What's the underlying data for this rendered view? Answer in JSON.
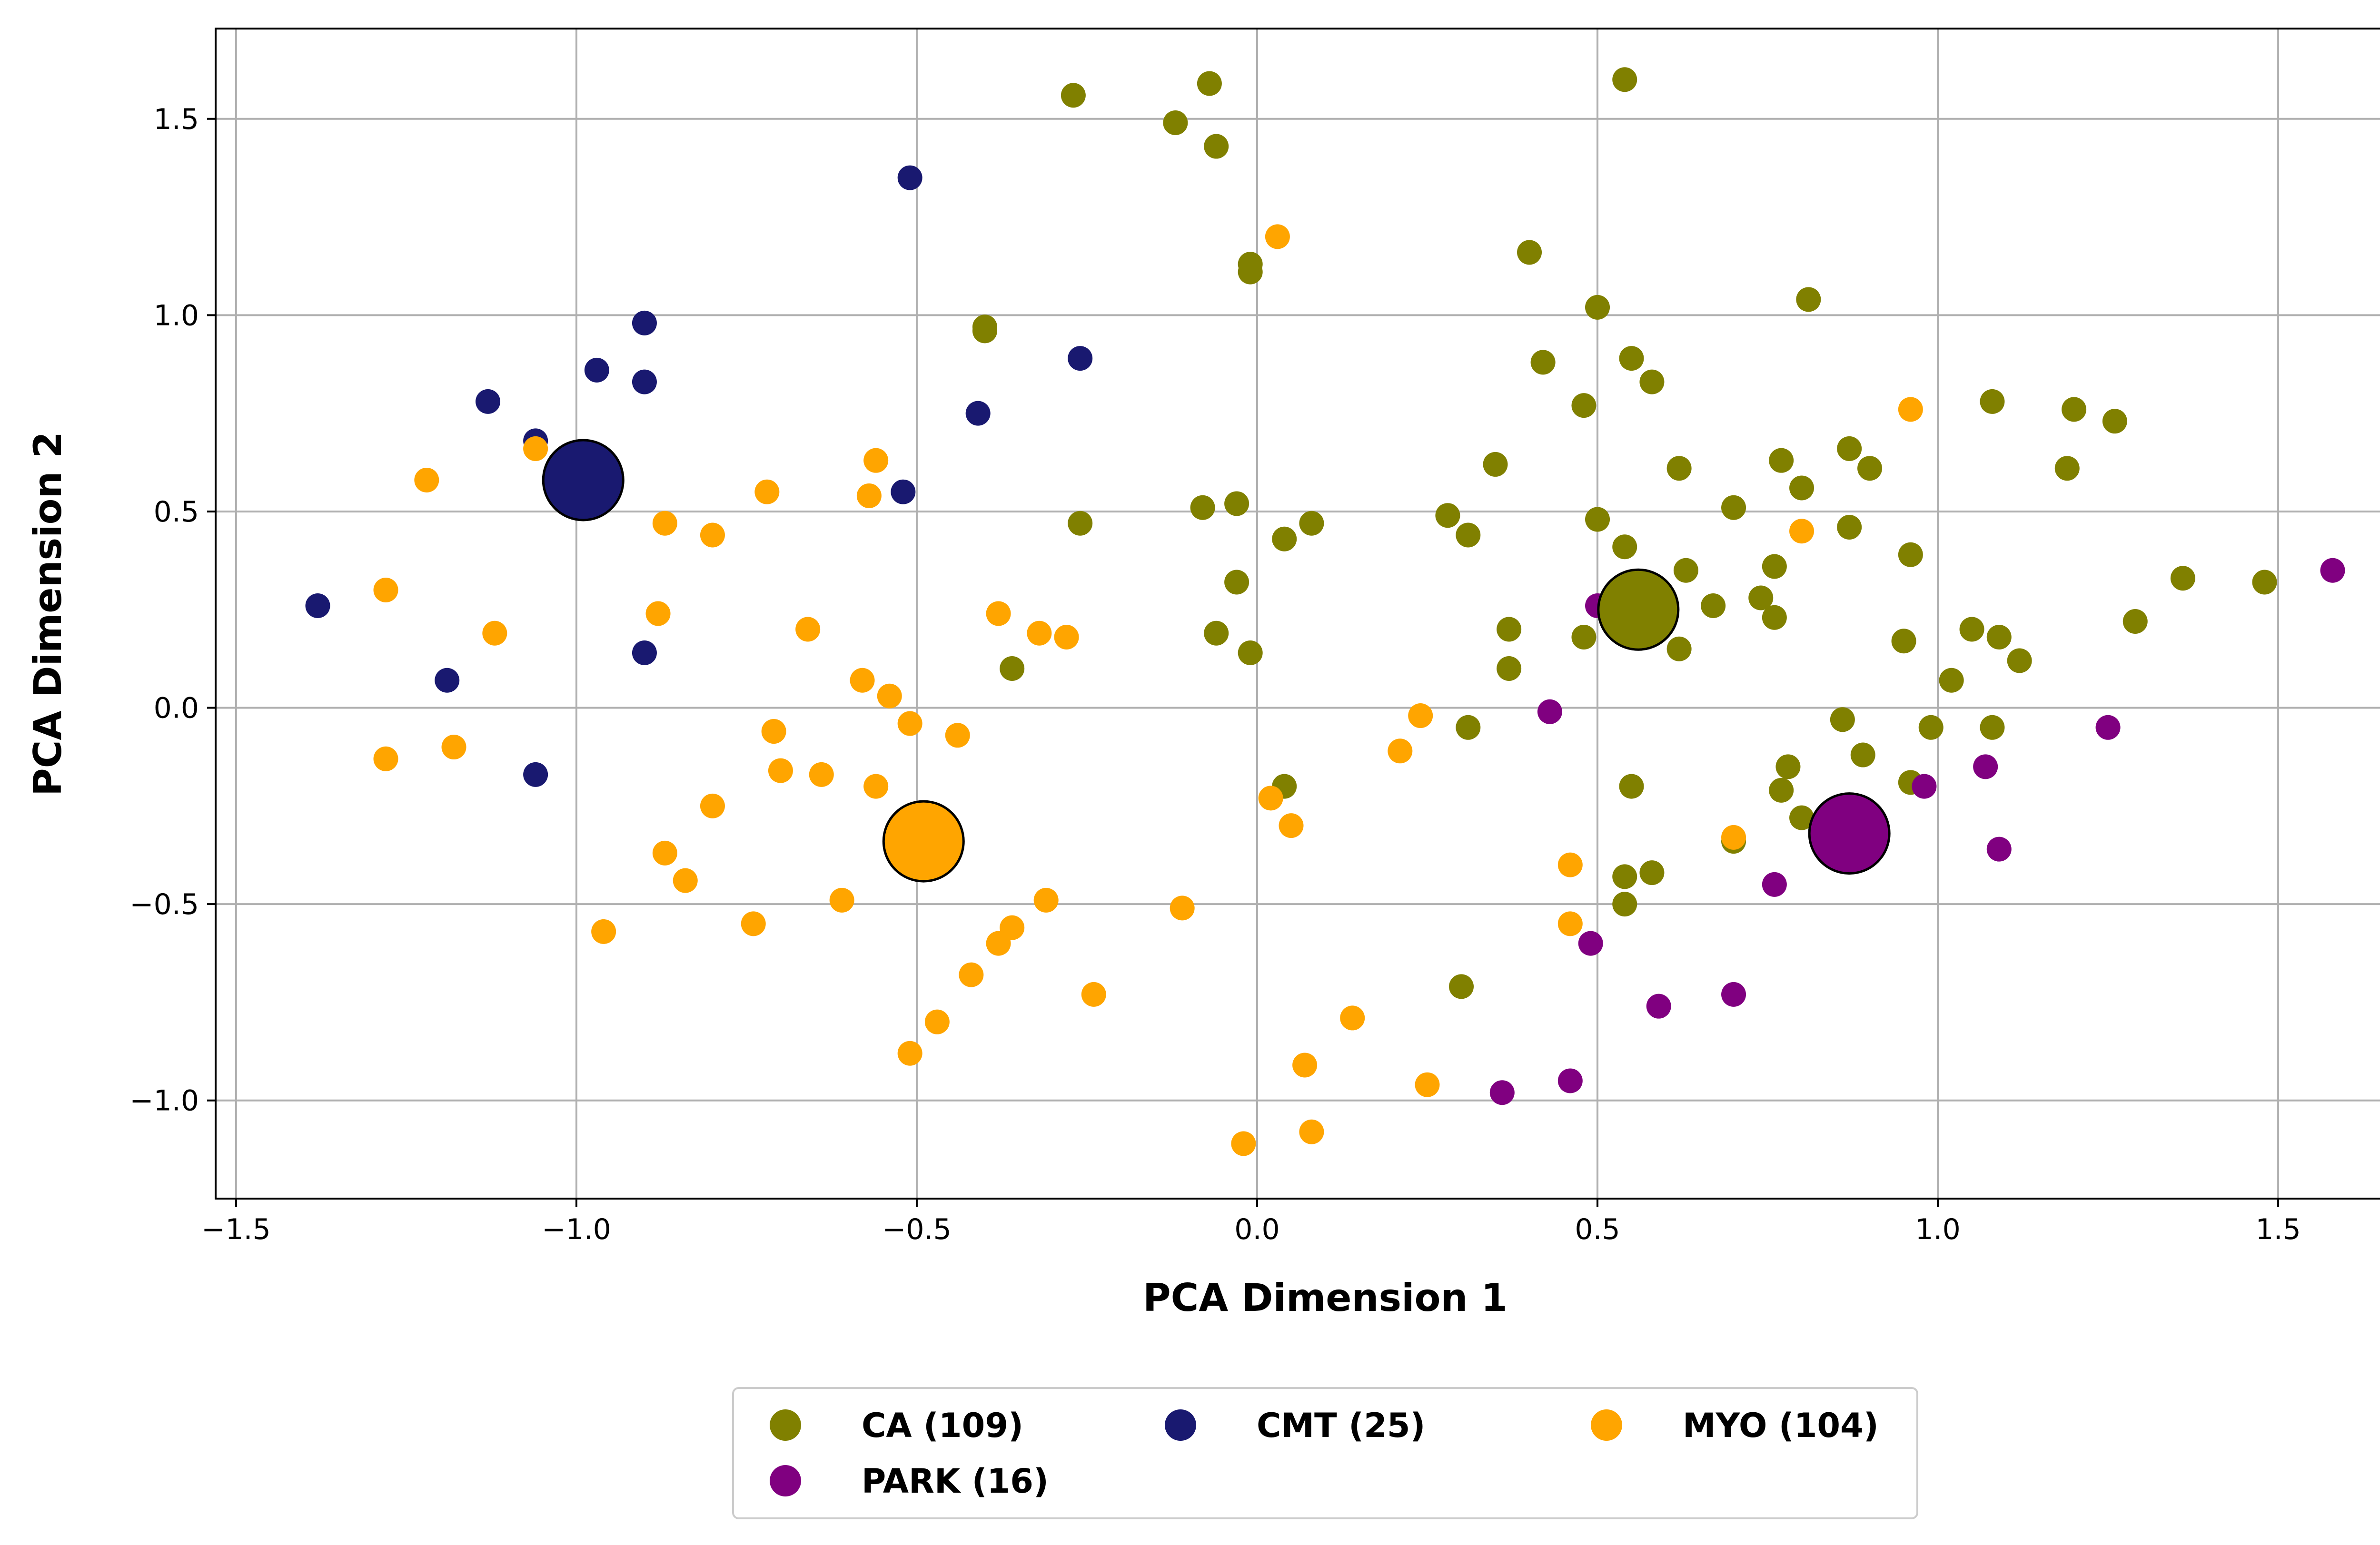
{
  "chart_data": {
    "type": "scatter",
    "xlabel": "PCA Dimension 1",
    "ylabel": "PCA Dimension 2",
    "xlim": [
      -1.53,
      1.73
    ],
    "ylim": [
      -1.25,
      1.73
    ],
    "xticks": [
      -1.5,
      -1.0,
      -0.5,
      0.0,
      0.5,
      1.0,
      1.5
    ],
    "xtick_labels": [
      "−1.5",
      "−1.0",
      "−0.5",
      "0.0",
      "0.5",
      "1.0",
      "1.5"
    ],
    "yticks": [
      -1.0,
      -0.5,
      0.0,
      0.5,
      1.0,
      1.5
    ],
    "ytick_labels": [
      "−1.0",
      "−0.5",
      "0.0",
      "0.5",
      "1.0",
      "1.5"
    ],
    "grid": true,
    "legend_position": "below",
    "series": [
      {
        "name": "CA (109)",
        "color": "#808000",
        "centroid": [
          0.56,
          0.25
        ],
        "points": [
          [
            -0.27,
            1.56
          ],
          [
            -0.07,
            1.59
          ],
          [
            -0.12,
            1.49
          ],
          [
            -0.06,
            1.43
          ],
          [
            0.54,
            1.6
          ],
          [
            -0.01,
            1.13
          ],
          [
            -0.01,
            1.11
          ],
          [
            0.4,
            1.16
          ],
          [
            0.5,
            1.02
          ],
          [
            0.81,
            1.04
          ],
          [
            0.42,
            0.88
          ],
          [
            0.55,
            0.89
          ],
          [
            0.58,
            0.83
          ],
          [
            0.48,
            0.77
          ],
          [
            1.08,
            0.78
          ],
          [
            1.2,
            0.76
          ],
          [
            1.26,
            0.73
          ],
          [
            0.87,
            0.66
          ],
          [
            0.9,
            0.61
          ],
          [
            0.77,
            0.63
          ],
          [
            0.8,
            0.56
          ],
          [
            0.62,
            0.61
          ],
          [
            1.19,
            0.61
          ],
          [
            -0.4,
            0.97
          ],
          [
            -0.4,
            0.96
          ],
          [
            0.35,
            0.62
          ],
          [
            -0.08,
            0.51
          ],
          [
            -0.03,
            0.52
          ],
          [
            0.08,
            0.47
          ],
          [
            0.04,
            0.43
          ],
          [
            -0.26,
            0.47
          ],
          [
            0.28,
            0.49
          ],
          [
            0.31,
            0.44
          ],
          [
            0.5,
            0.48
          ],
          [
            0.54,
            0.41
          ],
          [
            0.7,
            0.51
          ],
          [
            0.76,
            0.36
          ],
          [
            0.87,
            0.46
          ],
          [
            0.96,
            0.39
          ],
          [
            0.63,
            0.35
          ],
          [
            0.67,
            0.26
          ],
          [
            0.74,
            0.28
          ],
          [
            0.76,
            0.23
          ],
          [
            1.36,
            0.33
          ],
          [
            1.48,
            0.32
          ],
          [
            -0.03,
            0.32
          ],
          [
            -0.06,
            0.19
          ],
          [
            -0.01,
            0.14
          ],
          [
            0.37,
            0.2
          ],
          [
            0.37,
            0.1
          ],
          [
            0.48,
            0.18
          ],
          [
            0.62,
            0.15
          ],
          [
            1.05,
            0.2
          ],
          [
            1.09,
            0.18
          ],
          [
            1.12,
            0.12
          ],
          [
            0.95,
            0.17
          ],
          [
            1.29,
            0.22
          ],
          [
            1.02,
            0.07
          ],
          [
            -0.36,
            0.1
          ],
          [
            0.31,
            -0.05
          ],
          [
            0.86,
            -0.03
          ],
          [
            0.89,
            -0.12
          ],
          [
            0.99,
            -0.05
          ],
          [
            1.08,
            -0.05
          ],
          [
            0.96,
            -0.19
          ],
          [
            0.78,
            -0.15
          ],
          [
            0.77,
            -0.21
          ],
          [
            0.8,
            -0.28
          ],
          [
            0.55,
            -0.2
          ],
          [
            0.04,
            -0.2
          ],
          [
            0.54,
            -0.43
          ],
          [
            0.58,
            -0.42
          ],
          [
            0.54,
            -0.5
          ],
          [
            0.7,
            -0.34
          ],
          [
            0.3,
            -0.71
          ]
        ]
      },
      {
        "name": "CMT (25)",
        "color": "#191970",
        "centroid": [
          -0.99,
          0.58
        ],
        "points": [
          [
            -0.51,
            1.35
          ],
          [
            -0.9,
            0.98
          ],
          [
            -0.97,
            0.86
          ],
          [
            -0.9,
            0.83
          ],
          [
            -1.13,
            0.78
          ],
          [
            -0.26,
            0.89
          ],
          [
            -0.41,
            0.75
          ],
          [
            -1.06,
            0.68
          ],
          [
            -0.52,
            0.55
          ],
          [
            -1.38,
            0.26
          ],
          [
            -0.9,
            0.14
          ],
          [
            -1.19,
            0.07
          ],
          [
            -1.06,
            -0.17
          ]
        ]
      },
      {
        "name": "MYO (104)",
        "color": "#ffa500",
        "centroid": [
          -0.49,
          -0.34
        ],
        "points": [
          [
            0.03,
            1.2
          ],
          [
            0.96,
            0.76
          ],
          [
            -1.22,
            0.58
          ],
          [
            -1.06,
            0.66
          ],
          [
            -0.72,
            0.55
          ],
          [
            -0.57,
            0.54
          ],
          [
            -0.56,
            0.63
          ],
          [
            -0.87,
            0.47
          ],
          [
            -0.8,
            0.44
          ],
          [
            0.8,
            0.45
          ],
          [
            -1.28,
            0.3
          ],
          [
            -1.12,
            0.19
          ],
          [
            -0.88,
            0.24
          ],
          [
            -0.66,
            0.2
          ],
          [
            -0.38,
            0.24
          ],
          [
            -0.32,
            0.19
          ],
          [
            -0.28,
            0.18
          ],
          [
            -0.58,
            0.07
          ],
          [
            -0.54,
            0.03
          ],
          [
            -0.51,
            -0.04
          ],
          [
            -0.44,
            -0.07
          ],
          [
            -0.71,
            -0.06
          ],
          [
            -1.18,
            -0.1
          ],
          [
            -1.28,
            -0.13
          ],
          [
            -0.7,
            -0.16
          ],
          [
            -0.64,
            -0.17
          ],
          [
            -0.56,
            -0.2
          ],
          [
            -0.8,
            -0.25
          ],
          [
            0.24,
            -0.02
          ],
          [
            0.21,
            -0.11
          ],
          [
            0.02,
            -0.23
          ],
          [
            0.05,
            -0.3
          ],
          [
            -0.87,
            -0.37
          ],
          [
            -0.84,
            -0.44
          ],
          [
            -0.61,
            -0.49
          ],
          [
            -0.31,
            -0.49
          ],
          [
            -0.11,
            -0.51
          ],
          [
            -0.36,
            -0.56
          ],
          [
            -0.38,
            -0.6
          ],
          [
            -0.74,
            -0.55
          ],
          [
            -0.96,
            -0.57
          ],
          [
            -0.42,
            -0.68
          ],
          [
            -0.24,
            -0.73
          ],
          [
            -0.47,
            -0.8
          ],
          [
            -0.51,
            -0.88
          ],
          [
            0.14,
            -0.79
          ],
          [
            0.07,
            -0.91
          ],
          [
            0.25,
            -0.96
          ],
          [
            -0.02,
            -1.11
          ],
          [
            0.08,
            -1.08
          ],
          [
            0.46,
            -0.4
          ],
          [
            0.46,
            -0.55
          ],
          [
            0.7,
            -0.33
          ]
        ]
      },
      {
        "name": "PARK (16)",
        "color": "#800080",
        "centroid": [
          0.87,
          -0.32
        ],
        "points": [
          [
            1.58,
            0.35
          ],
          [
            0.5,
            0.26
          ],
          [
            0.43,
            -0.01
          ],
          [
            1.25,
            -0.05
          ],
          [
            1.07,
            -0.15
          ],
          [
            0.98,
            -0.2
          ],
          [
            1.09,
            -0.36
          ],
          [
            0.76,
            -0.45
          ],
          [
            0.49,
            -0.6
          ],
          [
            0.59,
            -0.76
          ],
          [
            0.7,
            -0.73
          ],
          [
            0.46,
            -0.95
          ],
          [
            0.36,
            -0.98
          ]
        ]
      }
    ]
  }
}
